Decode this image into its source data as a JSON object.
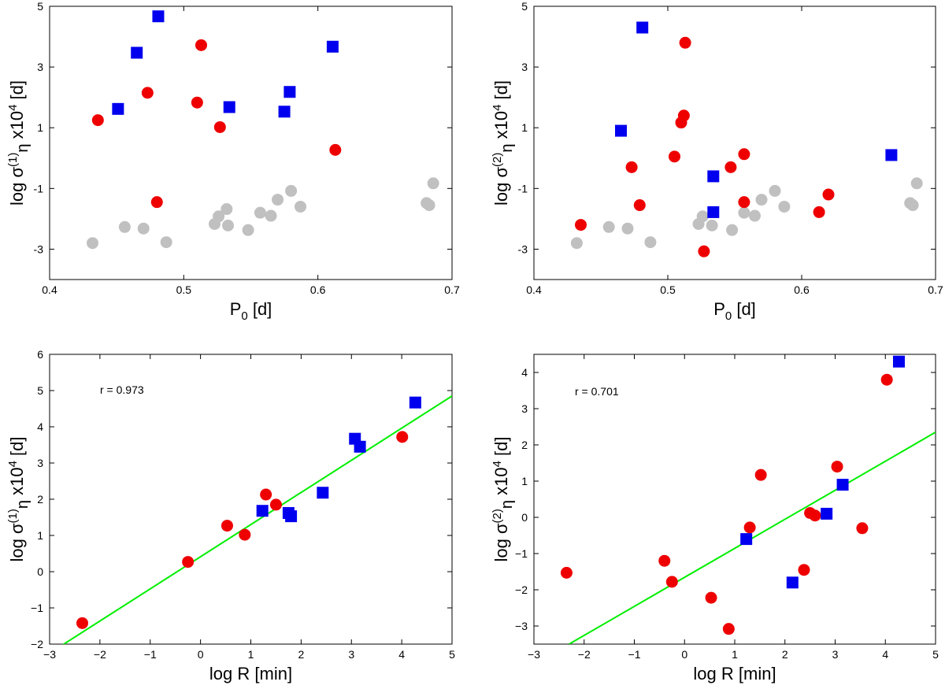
{
  "colors": {
    "red": "#ee0000",
    "blue": "#0000ee",
    "gray": "#c0c0c0",
    "fit": "#00ee00",
    "axis": "#000000"
  },
  "chart_data": [
    {
      "type": "scatter",
      "xlabel": "P_0 [d]",
      "ylabel": "log σ^(1)_η x10^4 [d]",
      "xlim": [
        0.4,
        0.7
      ],
      "ylim": [
        -4,
        5
      ],
      "xticks": [
        "0.4",
        "0.5",
        "0.6",
        "0.7"
      ],
      "yticks": [
        "-3",
        "-1",
        "1",
        "3",
        "5"
      ],
      "grid": false,
      "series": [
        {
          "marker": "circle",
          "color": "gray",
          "x": [
            0.432,
            0.456,
            0.47,
            0.487,
            0.523,
            0.526,
            0.532,
            0.533,
            0.548,
            0.557,
            0.565,
            0.57,
            0.58,
            0.587,
            0.681,
            0.683,
            0.686
          ],
          "y": [
            -2.8,
            -2.27,
            -2.32,
            -2.77,
            -2.17,
            -1.92,
            -1.68,
            -2.22,
            -2.37,
            -1.8,
            -1.9,
            -1.37,
            -1.08,
            -1.6,
            -1.48,
            -1.55,
            -0.83
          ]
        },
        {
          "marker": "circle",
          "color": "red",
          "x": [
            0.436,
            0.473,
            0.48,
            0.51,
            0.513,
            0.527,
            0.613
          ],
          "y": [
            1.25,
            2.15,
            -1.45,
            1.83,
            3.72,
            1.02,
            0.27
          ]
        },
        {
          "marker": "square",
          "color": "blue",
          "x": [
            0.451,
            0.465,
            0.481,
            0.534,
            0.575,
            0.579,
            0.611
          ],
          "y": [
            1.62,
            3.47,
            4.67,
            1.68,
            1.53,
            2.18,
            3.67
          ]
        }
      ]
    },
    {
      "type": "scatter",
      "xlabel": "P_0 [d]",
      "ylabel": "log σ^(2)_η x10^4 [d]",
      "xlim": [
        0.4,
        0.7
      ],
      "ylim": [
        -4,
        5
      ],
      "xticks": [
        "0.4",
        "0.5",
        "0.6",
        "0.7"
      ],
      "yticks": [
        "-3",
        "-1",
        "1",
        "3",
        "5"
      ],
      "grid": false,
      "series": [
        {
          "marker": "circle",
          "color": "gray",
          "x": [
            0.432,
            0.456,
            0.47,
            0.487,
            0.523,
            0.526,
            0.533,
            0.548,
            0.557,
            0.565,
            0.57,
            0.58,
            0.587,
            0.681,
            0.683,
            0.686
          ],
          "y": [
            -2.8,
            -2.27,
            -2.32,
            -2.77,
            -2.17,
            -1.92,
            -2.22,
            -2.37,
            -1.8,
            -1.9,
            -1.37,
            -1.08,
            -1.6,
            -1.48,
            -1.55,
            -0.83
          ]
        },
        {
          "marker": "circle",
          "color": "red",
          "x": [
            0.435,
            0.473,
            0.479,
            0.505,
            0.51,
            0.512,
            0.513,
            0.527,
            0.547,
            0.557,
            0.557,
            0.613,
            0.62
          ],
          "y": [
            -2.2,
            -0.3,
            -1.55,
            0.05,
            1.17,
            1.4,
            3.8,
            -3.07,
            -0.3,
            0.13,
            -1.45,
            -1.78,
            -1.2
          ]
        },
        {
          "marker": "square",
          "color": "blue",
          "x": [
            0.465,
            0.481,
            0.534,
            0.534,
            0.667
          ],
          "y": [
            0.9,
            4.3,
            -0.6,
            -1.78,
            0.1
          ]
        }
      ]
    },
    {
      "type": "scatter",
      "xlabel": "log R [min]",
      "ylabel": "log σ^(1)_η x10^4 [d]",
      "xlim": [
        -3,
        5
      ],
      "ylim": [
        -2,
        6
      ],
      "xticks": [
        "−3",
        "−2",
        "−1",
        "0",
        "1",
        "2",
        "3",
        "4",
        "5"
      ],
      "yticks": [
        "−2",
        "−1",
        "0",
        "1",
        "2",
        "3",
        "4",
        "5",
        "6"
      ],
      "grid": false,
      "annotation": "r = 0.973",
      "fit_line": {
        "x": [
          -3,
          5
        ],
        "y": [
          -2.25,
          4.85
        ]
      },
      "series": [
        {
          "marker": "circle",
          "color": "red",
          "x": [
            -2.35,
            -0.25,
            0.53,
            0.88,
            1.3,
            1.5,
            4.01
          ],
          "y": [
            -1.42,
            0.27,
            1.27,
            1.02,
            2.13,
            1.85,
            3.72
          ]
        },
        {
          "marker": "square",
          "color": "blue",
          "x": [
            1.23,
            1.75,
            1.8,
            2.43,
            3.07,
            3.17,
            4.27
          ],
          "y": [
            1.68,
            1.62,
            1.53,
            2.18,
            3.67,
            3.45,
            4.67
          ]
        }
      ]
    },
    {
      "type": "scatter",
      "xlabel": "log R [min]",
      "ylabel": "log σ^(2)_η x10^4 [d]",
      "xlim": [
        -3,
        5
      ],
      "ylim": [
        -3.5,
        4.5
      ],
      "xticks": [
        "−3",
        "−2",
        "−1",
        "0",
        "1",
        "2",
        "3",
        "4",
        "5"
      ],
      "yticks": [
        "−3",
        "−2",
        "−1",
        "0",
        "1",
        "2",
        "3",
        "4"
      ],
      "grid": false,
      "annotation": "r = 0.701",
      "fit_line": {
        "x": [
          -2.3,
          5
        ],
        "y": [
          -3.5,
          2.35
        ]
      },
      "series": [
        {
          "marker": "circle",
          "color": "red",
          "x": [
            -2.35,
            -0.4,
            -0.25,
            0.53,
            0.88,
            1.3,
            1.52,
            2.38,
            2.5,
            2.6,
            3.04,
            3.54,
            4.03
          ],
          "y": [
            -1.53,
            -1.2,
            -1.78,
            -2.22,
            -3.08,
            -0.28,
            1.17,
            -1.45,
            0.12,
            0.05,
            1.4,
            -0.3,
            3.8
          ]
        },
        {
          "marker": "square",
          "color": "blue",
          "x": [
            1.23,
            2.15,
            2.83,
            3.15,
            4.27
          ],
          "y": [
            -0.6,
            -1.8,
            0.1,
            0.9,
            4.3
          ]
        }
      ]
    }
  ]
}
